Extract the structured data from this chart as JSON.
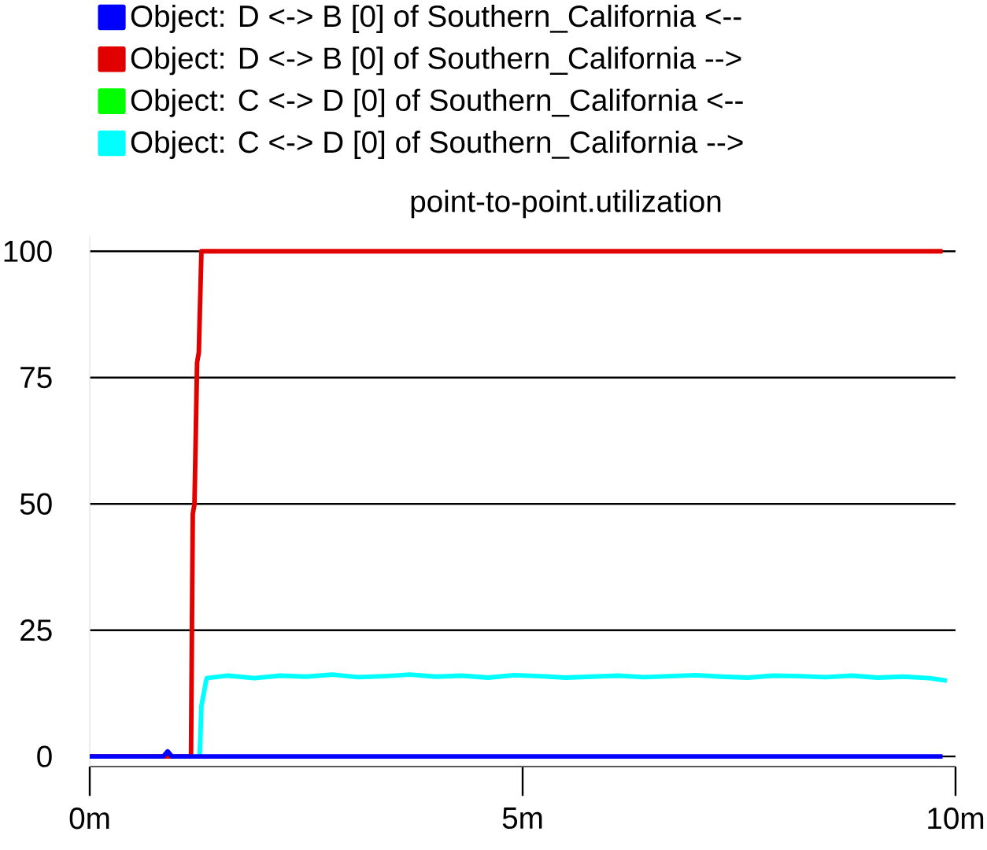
{
  "chart_data": {
    "type": "line",
    "title": "point-to-point.utilization",
    "xlim": [
      0,
      10
    ],
    "ylim": [
      -2,
      103
    ],
    "xticks": [
      {
        "value": 0,
        "label": "0m"
      },
      {
        "value": 5,
        "label": "5m"
      },
      {
        "value": 10,
        "label": "10m"
      }
    ],
    "yticks": [
      0,
      25,
      50,
      75,
      100
    ],
    "grid": "y",
    "legend": "top",
    "marker": "none",
    "line_style": "solid",
    "series": [
      {
        "name": "Object: D <-> B [0] of Southern_California <--",
        "color": "#0000ff",
        "x": [
          0,
          0.85,
          0.9,
          0.95,
          1.0,
          9.85
        ],
        "values": [
          0,
          0,
          1,
          0,
          0,
          0
        ]
      },
      {
        "name": "Object: D <-> B [0] of Southern_California -->",
        "color": "#e00000",
        "x": [
          0,
          1.17,
          1.19,
          1.21,
          1.24,
          1.26,
          1.29,
          9.85
        ],
        "values": [
          0,
          0,
          48,
          50,
          78,
          80,
          100,
          100
        ]
      },
      {
        "name": "Object: C <-> D [0] of Southern_California <--",
        "color": "#00ff00"
      },
      {
        "name": "Object: C <-> D [0] of Southern_California -->",
        "color": "#00ffff",
        "x": [
          1.27,
          1.29,
          1.35,
          1.6,
          1.9,
          2.2,
          2.5,
          2.8,
          3.1,
          3.4,
          3.7,
          4.0,
          4.3,
          4.6,
          4.9,
          5.2,
          5.5,
          5.8,
          6.1,
          6.4,
          6.7,
          7.0,
          7.3,
          7.6,
          7.9,
          8.2,
          8.5,
          8.8,
          9.1,
          9.4,
          9.7,
          9.9
        ],
        "values": [
          0,
          10,
          15.5,
          16,
          15.5,
          16,
          15.8,
          16.2,
          15.7,
          15.9,
          16.2,
          15.8,
          16,
          15.6,
          16.1,
          15.9,
          15.6,
          15.8,
          16,
          15.7,
          15.9,
          16.1,
          15.8,
          15.6,
          16,
          15.9,
          15.7,
          16,
          15.6,
          15.8,
          15.5,
          15
        ]
      }
    ]
  }
}
